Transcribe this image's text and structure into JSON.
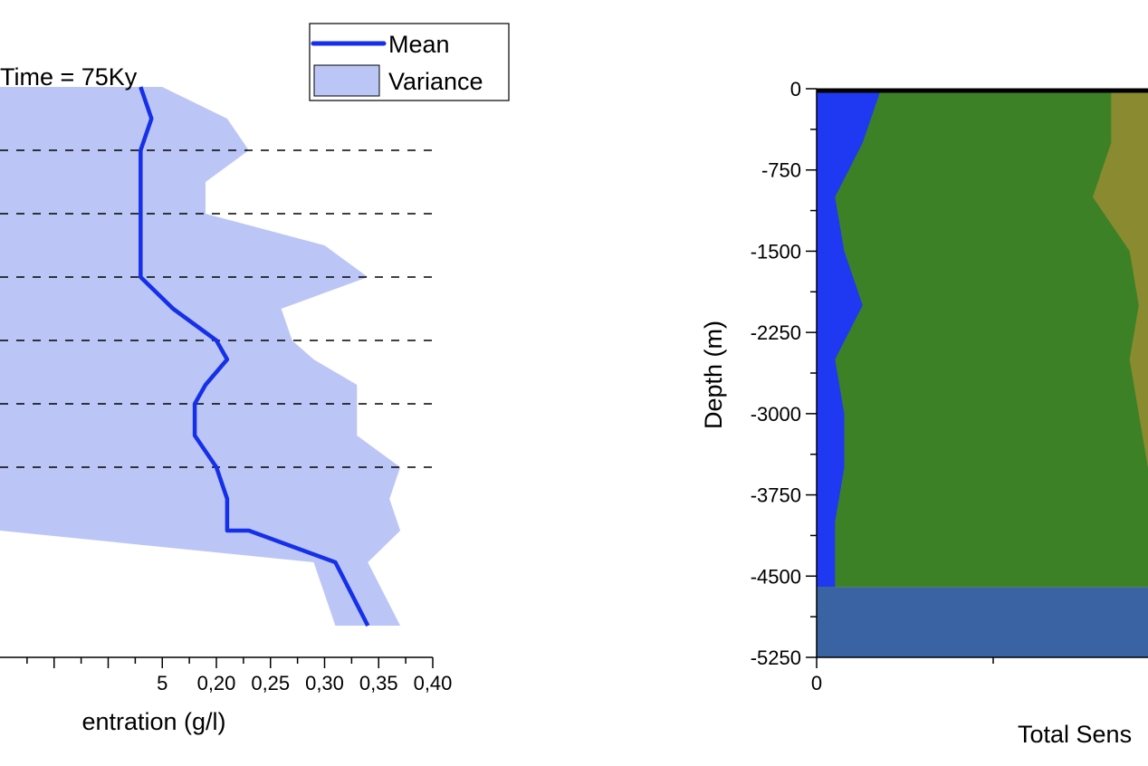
{
  "chart_data": [
    {
      "type": "area",
      "annotation": "Time = 75Ky",
      "xlabel": "entration (g/l)",
      "x_ticks": [
        "5",
        "0,20",
        "0,25",
        "0,30",
        "0,35",
        "0,40"
      ],
      "x_tick_values": [
        0.15,
        0.2,
        0.25,
        0.3,
        0.35,
        0.4
      ],
      "xlim": [
        0.0,
        0.4
      ],
      "legend": {
        "placement": "top-right",
        "entries": [
          "Mean",
          "Variance"
        ]
      },
      "colors": {
        "mean": "#1530e8",
        "variance": "#bcc6f6",
        "dashed": "#000000"
      },
      "y_levels": [
        0,
        0.5,
        1,
        1.5,
        2,
        2.5,
        3,
        3.5,
        4,
        4.5,
        5,
        5.5,
        6,
        6.5,
        7,
        7.5,
        8,
        8.5,
        9
      ],
      "dashed_levels": [
        1,
        2,
        3,
        4,
        5,
        6
      ],
      "series": [
        {
          "name": "Mean",
          "x": [
            0.13,
            0.14,
            0.13,
            0.13,
            0.13,
            0.13,
            0.13,
            0.16,
            0.2,
            0.21,
            0.19,
            0.18,
            0.18,
            0.2,
            0.21,
            0.21,
            0.23,
            0.31,
            0.34
          ],
          "y": [
            0,
            0.5,
            1,
            1.5,
            2,
            2.5,
            3,
            3.5,
            4,
            4.3,
            4.7,
            5.0,
            5.5,
            6.0,
            6.5,
            7.0,
            7.0,
            7.5,
            8.5
          ]
        },
        {
          "name": "Variance",
          "x_low": [
            0.0,
            0.0,
            0.0,
            0.0,
            0.0,
            0.0,
            0.0,
            0.0,
            0.0,
            0.0,
            0.0,
            0.0,
            0.0,
            0.0,
            0.0,
            0.0,
            0.0,
            0.29,
            0.31
          ],
          "x_high": [
            0.15,
            0.21,
            0.23,
            0.19,
            0.19,
            0.3,
            0.34,
            0.26,
            0.27,
            0.29,
            0.33,
            0.33,
            0.33,
            0.37,
            0.36,
            0.37,
            0.37,
            0.34,
            0.37
          ],
          "y": [
            0,
            0.5,
            1,
            1.5,
            2,
            2.5,
            3,
            3.5,
            4,
            4.3,
            4.7,
            5.0,
            5.5,
            6.0,
            6.5,
            7.0,
            7.0,
            7.5,
            8.5
          ]
        }
      ]
    },
    {
      "type": "area",
      "ylabel": "Depth (m)",
      "xlabel": "Total Sens",
      "y_ticks": [
        "0",
        "-750",
        "-1500",
        "-2250",
        "-3000",
        "-3750",
        "-4500",
        "-5250"
      ],
      "y_tick_values": [
        0,
        -750,
        -1500,
        -2250,
        -3000,
        -3750,
        -4500,
        -5250
      ],
      "ylim": [
        -5250,
        0
      ],
      "x_ticks": [
        "0"
      ],
      "x_tick_values": [
        0
      ],
      "series": [
        {
          "name": "",
          "color": "#1f38f2",
          "depth": [
            0,
            -500,
            -1000,
            -1500,
            -2000,
            -2500,
            -3000,
            -3500,
            -4000,
            -4600
          ],
          "upper": [
            0.07,
            0.05,
            0.02,
            0.03,
            0.05,
            0.02,
            0.03,
            0.03,
            0.02,
            0.02
          ]
        },
        {
          "name": "",
          "color": "#3d8127",
          "depth": [
            0,
            -500,
            -1000,
            -1500,
            -2000,
            -2500,
            -3000,
            -3500,
            -4000,
            -4600
          ],
          "upper": [
            0.32,
            0.32,
            0.3,
            0.34,
            0.35,
            0.34,
            0.35,
            0.36,
            0.36,
            0.36
          ]
        },
        {
          "name": "",
          "color": "#8a8a30",
          "depth": [
            0,
            -500,
            -1000,
            -1500,
            -2000,
            -2500,
            -3000,
            -3500,
            -4000,
            -4600
          ],
          "upper": [
            0.36,
            0.36,
            0.36,
            0.36,
            0.36,
            0.36,
            0.36,
            0.36,
            0.36,
            0.36
          ]
        },
        {
          "name": "",
          "color": "#3a63a3",
          "depth": [
            -4600,
            -5250
          ],
          "upper": [
            0.36,
            0.36
          ]
        }
      ]
    }
  ]
}
